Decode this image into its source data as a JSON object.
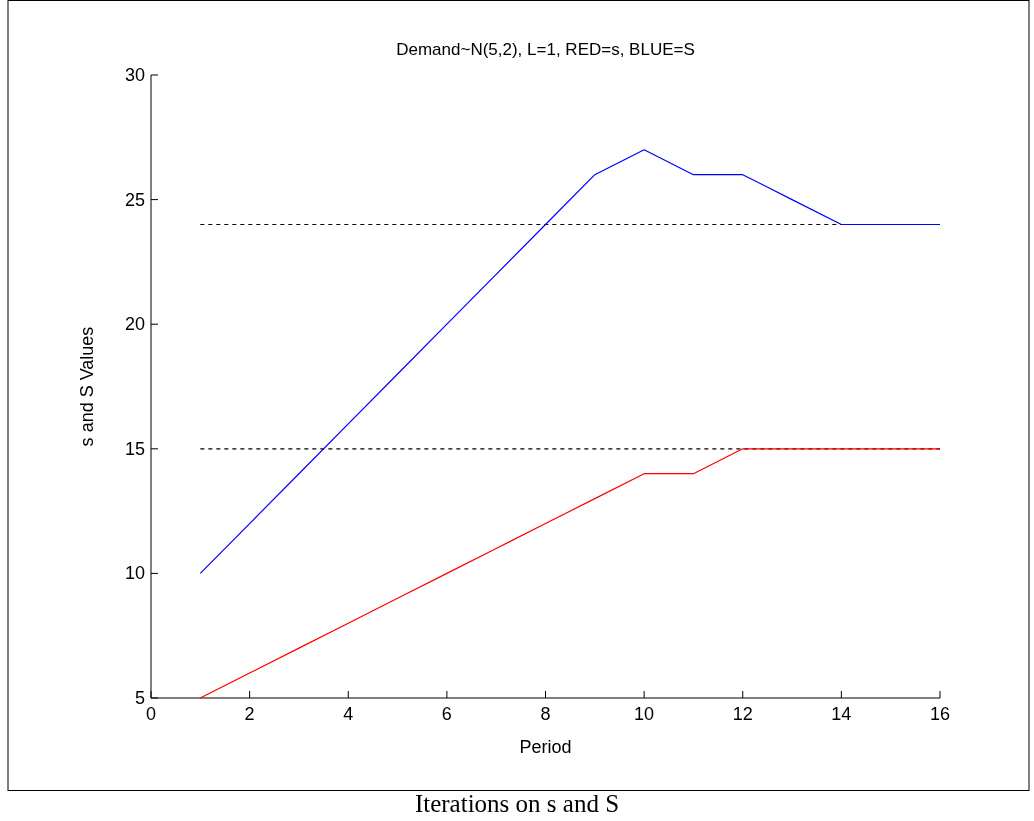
{
  "chart_data": {
    "type": "line",
    "title": "Demand~N(5,2), L=1, RED=s, BLUE=S",
    "xlabel": "Period",
    "ylabel": "s and S Values",
    "x": [
      1,
      2,
      3,
      4,
      5,
      6,
      7,
      8,
      9,
      10,
      11,
      12,
      13,
      14,
      15,
      16
    ],
    "series": [
      {
        "color": "#0000ff",
        "values": [
          10,
          12,
          14,
          16,
          18,
          20,
          22,
          24,
          26,
          27,
          26,
          26,
          25,
          24,
          24,
          24
        ]
      },
      {
        "color": "#ff0000",
        "values": [
          5,
          6,
          7,
          8,
          9,
          10,
          11,
          12,
          13,
          14,
          14,
          15,
          15,
          15,
          15,
          15
        ]
      }
    ],
    "xlim": [
      0,
      16
    ],
    "xticks": [
      0,
      2,
      4,
      6,
      8,
      10,
      12,
      14,
      16
    ],
    "ylim": [
      5,
      30
    ],
    "yticks": [
      5,
      10,
      15,
      20,
      25,
      30
    ],
    "ref_lines": [
      {
        "axis": "y",
        "value": 24,
        "color": "#000000",
        "line_style": "dashed"
      },
      {
        "axis": "y",
        "value": 15,
        "color": "#000000",
        "line_style": "dashed"
      }
    ],
    "grid": false,
    "marker": "none",
    "line_style": "solid",
    "annotations": [
      "Iterations on s and S"
    ]
  }
}
